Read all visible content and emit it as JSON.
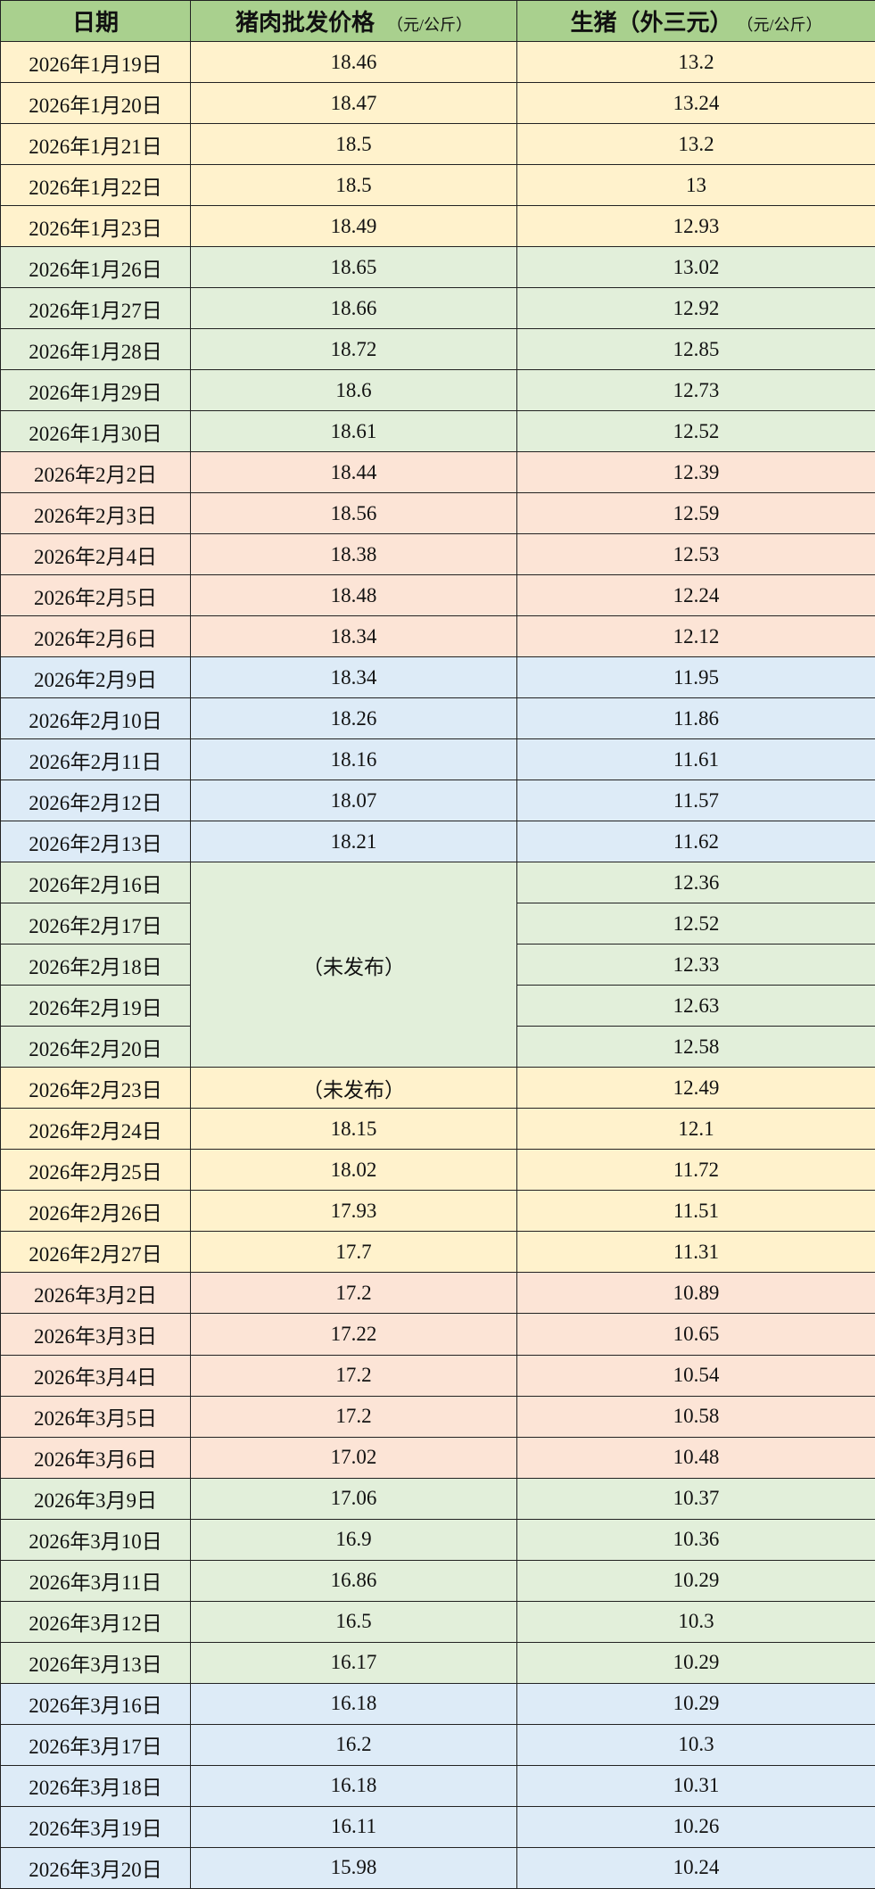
{
  "header": {
    "date": "日期",
    "pork": "猪肉批发价格",
    "pork_unit": "（元/公斤）",
    "hog": "生猪（外三元）",
    "hog_unit": "（元/公斤）"
  },
  "colors": {
    "header": "#a9d08e",
    "yellow": "#fff2cc",
    "green": "#e2efda",
    "pink": "#fce4d6",
    "blue": "#ddebf7"
  },
  "merged_note": "（未发布）",
  "rows": [
    {
      "date": "2026年1月19日",
      "pork": "18.46",
      "hog": "13.2",
      "color": "yellow"
    },
    {
      "date": "2026年1月20日",
      "pork": "18.47",
      "hog": "13.24",
      "color": "yellow"
    },
    {
      "date": "2026年1月21日",
      "pork": "18.5",
      "hog": "13.2",
      "color": "yellow"
    },
    {
      "date": "2026年1月22日",
      "pork": "18.5",
      "hog": "13",
      "color": "yellow"
    },
    {
      "date": "2026年1月23日",
      "pork": "18.49",
      "hog": "12.93",
      "color": "yellow"
    },
    {
      "date": "2026年1月26日",
      "pork": "18.65",
      "hog": "13.02",
      "color": "green"
    },
    {
      "date": "2026年1月27日",
      "pork": "18.66",
      "hog": "12.92",
      "color": "green"
    },
    {
      "date": "2026年1月28日",
      "pork": "18.72",
      "hog": "12.85",
      "color": "green"
    },
    {
      "date": "2026年1月29日",
      "pork": "18.6",
      "hog": "12.73",
      "color": "green"
    },
    {
      "date": "2026年1月30日",
      "pork": "18.61",
      "hog": "12.52",
      "color": "green"
    },
    {
      "date": "2026年2月2日",
      "pork": "18.44",
      "hog": "12.39",
      "color": "pink"
    },
    {
      "date": "2026年2月3日",
      "pork": "18.56",
      "hog": "12.59",
      "color": "pink"
    },
    {
      "date": "2026年2月4日",
      "pork": "18.38",
      "hog": "12.53",
      "color": "pink"
    },
    {
      "date": "2026年2月5日",
      "pork": "18.48",
      "hog": "12.24",
      "color": "pink"
    },
    {
      "date": "2026年2月6日",
      "pork": "18.34",
      "hog": "12.12",
      "color": "pink"
    },
    {
      "date": "2026年2月9日",
      "pork": "18.34",
      "hog": "11.95",
      "color": "blue"
    },
    {
      "date": "2026年2月10日",
      "pork": "18.26",
      "hog": "11.86",
      "color": "blue"
    },
    {
      "date": "2026年2月11日",
      "pork": "18.16",
      "hog": "11.61",
      "color": "blue"
    },
    {
      "date": "2026年2月12日",
      "pork": "18.07",
      "hog": "11.57",
      "color": "blue"
    },
    {
      "date": "2026年2月13日",
      "pork": "18.21",
      "hog": "11.62",
      "color": "blue"
    },
    {
      "date": "2026年2月16日",
      "pork": null,
      "hog": "12.36",
      "color": "green",
      "merge_start": 5
    },
    {
      "date": "2026年2月17日",
      "pork": null,
      "hog": "12.52",
      "color": "green",
      "merged": true
    },
    {
      "date": "2026年2月18日",
      "pork": null,
      "hog": "12.33",
      "color": "green",
      "merged": true
    },
    {
      "date": "2026年2月19日",
      "pork": null,
      "hog": "12.63",
      "color": "green",
      "merged": true
    },
    {
      "date": "2026年2月20日",
      "pork": null,
      "hog": "12.58",
      "color": "green",
      "merged": true
    },
    {
      "date": "2026年2月23日",
      "pork": "（未发布）",
      "hog": "12.49",
      "color": "yellow"
    },
    {
      "date": "2026年2月24日",
      "pork": "18.15",
      "hog": "12.1",
      "color": "yellow"
    },
    {
      "date": "2026年2月25日",
      "pork": "18.02",
      "hog": "11.72",
      "color": "yellow"
    },
    {
      "date": "2026年2月26日",
      "pork": "17.93",
      "hog": "11.51",
      "color": "yellow"
    },
    {
      "date": "2026年2月27日",
      "pork": "17.7",
      "hog": "11.31",
      "color": "yellow"
    },
    {
      "date": "2026年3月2日",
      "pork": "17.2",
      "hog": "10.89",
      "color": "pink"
    },
    {
      "date": "2026年3月3日",
      "pork": "17.22",
      "hog": "10.65",
      "color": "pink"
    },
    {
      "date": "2026年3月4日",
      "pork": "17.2",
      "hog": "10.54",
      "color": "pink"
    },
    {
      "date": "2026年3月5日",
      "pork": "17.2",
      "hog": "10.58",
      "color": "pink"
    },
    {
      "date": "2026年3月6日",
      "pork": "17.02",
      "hog": "10.48",
      "color": "pink"
    },
    {
      "date": "2026年3月9日",
      "pork": "17.06",
      "hog": "10.37",
      "color": "green"
    },
    {
      "date": "2026年3月10日",
      "pork": "16.9",
      "hog": "10.36",
      "color": "green"
    },
    {
      "date": "2026年3月11日",
      "pork": "16.86",
      "hog": "10.29",
      "color": "green"
    },
    {
      "date": "2026年3月12日",
      "pork": "16.5",
      "hog": "10.3",
      "color": "green"
    },
    {
      "date": "2026年3月13日",
      "pork": "16.17",
      "hog": "10.29",
      "color": "green"
    },
    {
      "date": "2026年3月16日",
      "pork": "16.18",
      "hog": "10.29",
      "color": "blue"
    },
    {
      "date": "2026年3月17日",
      "pork": "16.2",
      "hog": "10.3",
      "color": "blue"
    },
    {
      "date": "2026年3月18日",
      "pork": "16.18",
      "hog": "10.31",
      "color": "blue"
    },
    {
      "date": "2026年3月19日",
      "pork": "16.11",
      "hog": "10.26",
      "color": "blue"
    },
    {
      "date": "2026年3月20日",
      "pork": "15.98",
      "hog": "10.24",
      "color": "blue"
    }
  ]
}
